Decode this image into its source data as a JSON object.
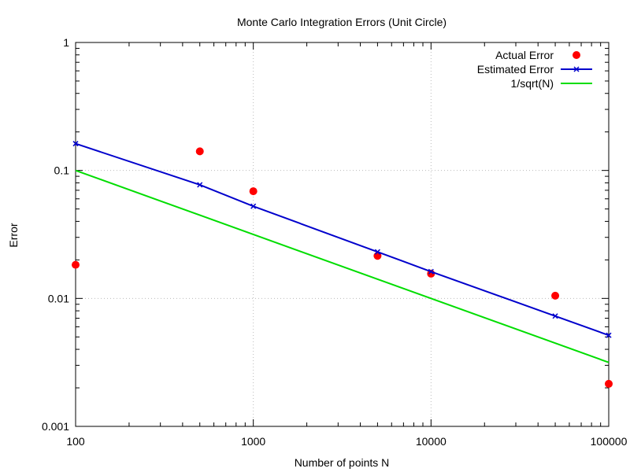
{
  "chart_data": {
    "type": "scatter",
    "title": "Monte Carlo Integration Errors (Unit Circle)",
    "xlabel": "Number of points N",
    "ylabel": "Error",
    "xscale": "log",
    "yscale": "log",
    "xlim": [
      100,
      100000
    ],
    "ylim": [
      0.001,
      1
    ],
    "x_ticks": [
      {
        "value": 100,
        "label": "100"
      },
      {
        "value": 1000,
        "label": "1000"
      },
      {
        "value": 10000,
        "label": "10000"
      },
      {
        "value": 100000,
        "label": "100000"
      }
    ],
    "y_ticks": [
      {
        "value": 0.001,
        "label": "0.001"
      },
      {
        "value": 0.01,
        "label": "0.01"
      },
      {
        "value": 0.1,
        "label": "0.1"
      },
      {
        "value": 1,
        "label": "1"
      }
    ],
    "grid": true,
    "legend_position": "top-right",
    "series": [
      {
        "name": "Actual Error",
        "style": "points",
        "color": "#ff0000",
        "x": [
          100,
          500,
          1000,
          5000,
          10000,
          50000,
          100000
        ],
        "y": [
          0.0183,
          0.141,
          0.0688,
          0.0215,
          0.0156,
          0.0105,
          0.00215
        ]
      },
      {
        "name": "Estimated Error",
        "style": "linespoints",
        "color": "#0000cc",
        "x": [
          100,
          500,
          1000,
          5000,
          10000,
          50000,
          100000
        ],
        "y": [
          0.162,
          0.0772,
          0.0525,
          0.0231,
          0.0162,
          0.00728,
          0.00515
        ]
      },
      {
        "name": "1/sqrt(N)",
        "style": "line",
        "color": "#00dd00",
        "x": [
          100,
          100000
        ],
        "y": [
          0.1,
          0.00316
        ]
      }
    ]
  }
}
